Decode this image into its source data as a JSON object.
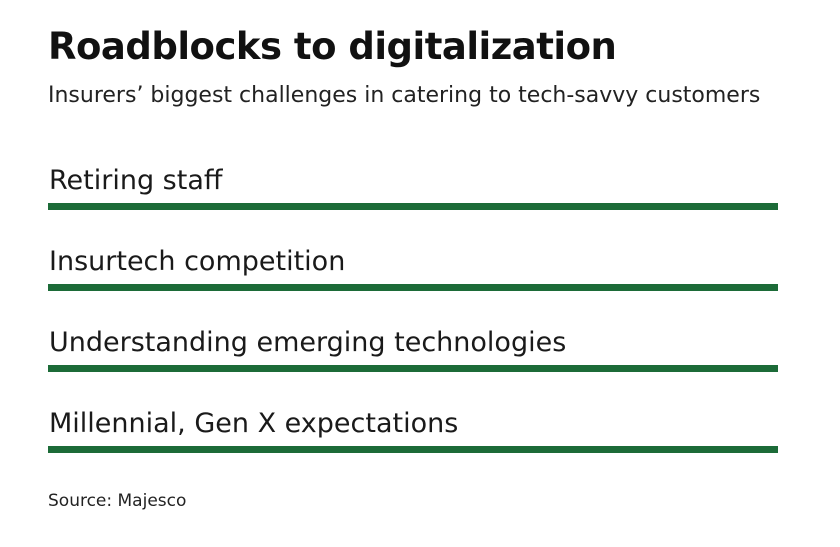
{
  "chart_data": {
    "type": "bar",
    "title": "Roadblocks to digitalization",
    "subtitle": "Insurers’ biggest challenges in catering to tech-savvy customers",
    "categories": [
      "Retiring staff",
      "Insurtech competition",
      "Understanding emerging technologies",
      "Millennial, Gen X expectations"
    ],
    "values": [
      1,
      1,
      1,
      1
    ],
    "bar_color": "#1c6b38",
    "source": "Source: Majesco"
  }
}
